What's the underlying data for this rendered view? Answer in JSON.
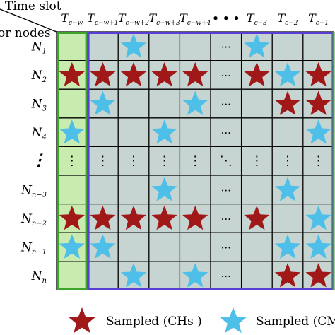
{
  "header": {
    "time_axis_label": "Time slot",
    "node_axis_label": "or nodes"
  },
  "columns": [
    {
      "base": "T",
      "sub": "c−w"
    },
    {
      "base": "T",
      "sub": "c−w+1"
    },
    {
      "base": "T",
      "sub": "c−w+2"
    },
    {
      "base": "T",
      "sub": "c−w+3"
    },
    {
      "base": "T",
      "sub": "c−w+4"
    },
    {
      "base": "",
      "sub": "",
      "text": "• • •"
    },
    {
      "base": "T",
      "sub": "c−3"
    },
    {
      "base": "T",
      "sub": "c−2"
    },
    {
      "base": "T",
      "sub": "c−1"
    }
  ],
  "rows": [
    {
      "base": "N",
      "sub": "1"
    },
    {
      "base": "N",
      "sub": "2"
    },
    {
      "base": "N",
      "sub": "3"
    },
    {
      "base": "N",
      "sub": "4"
    },
    {
      "base": "⋮",
      "sub": ""
    },
    {
      "base": "N",
      "sub": "n−3"
    },
    {
      "base": "N",
      "sub": "n−2"
    },
    {
      "base": "N",
      "sub": "n−1"
    },
    {
      "base": "N",
      "sub": "n"
    }
  ],
  "grid": [
    [
      "",
      "",
      "CM",
      "",
      "",
      "···",
      "CM",
      "",
      ""
    ],
    [
      "CH",
      "CH",
      "CH",
      "CH",
      "CH",
      "···",
      "CH",
      "CM",
      "CH"
    ],
    [
      "",
      "CM",
      "",
      "",
      "CM",
      "···",
      "",
      "CH",
      "CH"
    ],
    [
      "CM",
      "",
      "",
      "CM",
      "",
      "···",
      "",
      "",
      "CM"
    ],
    [
      "⋮",
      "⋮",
      "⋮",
      "⋮",
      "⋮",
      "⋱",
      "⋮",
      "⋮",
      "⋮"
    ],
    [
      "",
      "",
      "",
      "CM",
      "",
      "···",
      "",
      "CM",
      ""
    ],
    [
      "CH",
      "CH",
      "CH",
      "CH",
      "CH",
      "···",
      "CH",
      "",
      "CM"
    ],
    [
      "CM",
      "CM",
      "",
      "",
      "",
      "···",
      "",
      "CM",
      "CM"
    ],
    [
      "",
      "",
      "CM",
      "",
      "CM",
      "···",
      "",
      "CH",
      "CH"
    ]
  ],
  "legend": {
    "ch_label": "Sampled (CHs )",
    "cm_label": "Sampled (CMs"
  },
  "colors": {
    "ch_star": "#a01818",
    "cm_star": "#4dbfe8",
    "first_column_fill": "#c8ecb0",
    "first_column_border": "#3da52a",
    "window_border": "#5a3fd6",
    "cell_fill": "#c6d5d2",
    "grid_line": "#000000"
  }
}
